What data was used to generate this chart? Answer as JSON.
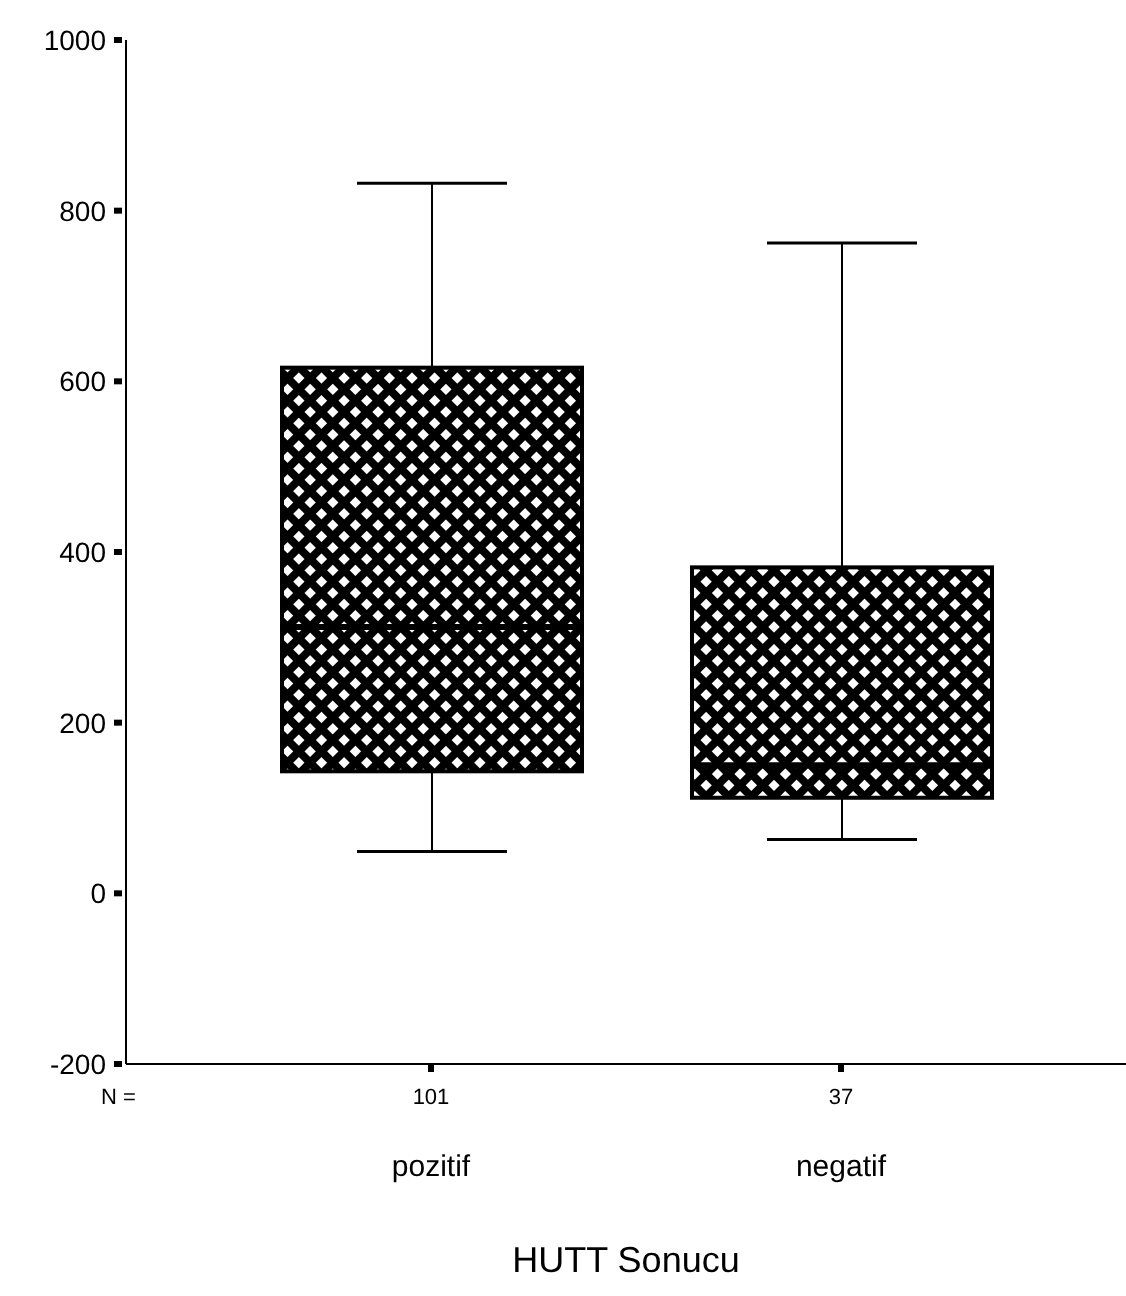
{
  "chart_data": {
    "type": "box",
    "xlabel": "HUTT Sonucu",
    "categories": [
      "pozitif",
      "negatif"
    ],
    "color": "#000000",
    "boxes": [
      {
        "low": 49,
        "q1": 143,
        "median": 312,
        "q3": 616,
        "high": 832
      },
      {
        "low": 63,
        "q1": 112,
        "median": 150,
        "q3": 382,
        "high": 762
      }
    ],
    "ylim": [
      -200,
      1000
    ],
    "yticks": [
      -200,
      0,
      200,
      400,
      600,
      800,
      1000
    ],
    "grid": false,
    "annotations": [
      "N =",
      {
        "text": "101",
        "x": "pozitif"
      },
      {
        "text": "37",
        "x": "negatif"
      }
    ]
  }
}
